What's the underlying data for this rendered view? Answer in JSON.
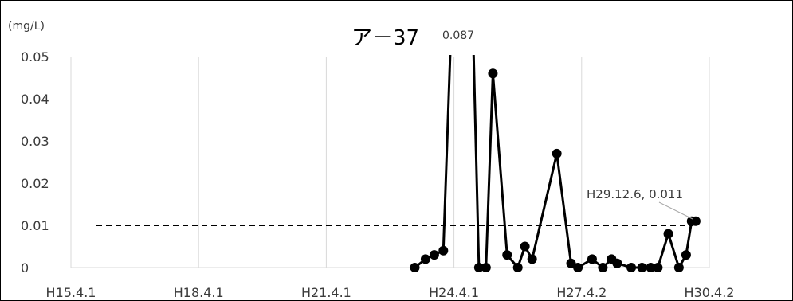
{
  "chart_data": {
    "type": "line",
    "title": "ア－37",
    "ylabel": "(mg/L)",
    "xlabel": "",
    "ylim": [
      0,
      0.05
    ],
    "yticks": [
      "0",
      "0.01",
      "0.02",
      "0.03",
      "0.04",
      "0.05"
    ],
    "xticks": [
      "H15.4.1",
      "H18.4.1",
      "H21.4.1",
      "H24.4.1",
      "H27.4.2",
      "H30.4.2"
    ],
    "xtick_dates": [
      "2003-04-01",
      "2006-04-01",
      "2009-04-01",
      "2012-04-01",
      "2015-04-02",
      "2018-04-02"
    ],
    "grid": "vertical-only",
    "reference_line": {
      "y": 0.01,
      "style": "dashed"
    },
    "series": [
      {
        "x": [
          "2011-05-01",
          "2011-08-01",
          "2011-10-15",
          "2012-01-01",
          "2012-04-15",
          "2012-08-15",
          "2012-11-01",
          "2013-01-01",
          "2013-03-01",
          "2013-07-01",
          "2013-10-01",
          "2013-12-01",
          "2014-02-01",
          "2014-09-01",
          "2015-01-01",
          "2015-03-01",
          "2015-07-01",
          "2015-10-01",
          "2015-12-15",
          "2016-02-01",
          "2016-06-01",
          "2016-09-01",
          "2016-11-15",
          "2017-01-15",
          "2017-04-15",
          "2017-07-15",
          "2017-09-15",
          "2017-11-01",
          "2017-12-06"
        ],
        "values": [
          0,
          0.002,
          0.003,
          0.004,
          0.087,
          0.087,
          0,
          0,
          0.046,
          0.003,
          0,
          0.005,
          0.002,
          0.027,
          0.001,
          0,
          0.002,
          0,
          0.002,
          0.001,
          0,
          0,
          0,
          0,
          0.008,
          0,
          0.003,
          0.011,
          0.011
        ]
      }
    ],
    "annotations": [
      {
        "text": "0.087",
        "target": "peak"
      },
      {
        "text": "H29.12.6, 0.011",
        "target": "last-point"
      }
    ]
  }
}
